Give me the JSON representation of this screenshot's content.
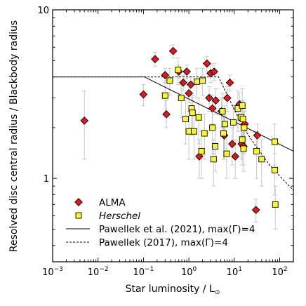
{
  "chart_data": {
    "type": "scatter",
    "xlabel_main": "Star luminosity / L",
    "xlabel_sub": "⊙",
    "ylabel": "Resolved disc central radius / Blackbody radius",
    "x_scale": "log",
    "y_scale": "log",
    "xlim": [
      0.001,
      200
    ],
    "ylim": [
      0.32,
      10
    ],
    "x_ticks": [
      {
        "value": 0.001,
        "base": "10",
        "exp": "−3"
      },
      {
        "value": 0.01,
        "base": "10",
        "exp": "−2"
      },
      {
        "value": 0.1,
        "base": "10",
        "exp": "−1"
      },
      {
        "value": 1,
        "base": "10",
        "exp": "0"
      },
      {
        "value": 10,
        "base": "10",
        "exp": "1"
      },
      {
        "value": 100,
        "base": "10",
        "exp": "2"
      }
    ],
    "y_ticks": [
      {
        "value": 1,
        "label": "1"
      },
      {
        "value": 10,
        "label": "10"
      }
    ],
    "legend_position": "lower-left",
    "series": [
      {
        "name": "ALMA",
        "marker": "diamond",
        "color": "#e8141c",
        "points": [
          {
            "x": 0.005,
            "y": 2.2,
            "lo": 1.3,
            "hi": 3.3
          },
          {
            "x": 0.1,
            "y": 3.15,
            "lo": 2.7,
            "hi": 3.6
          },
          {
            "x": 0.18,
            "y": 5.1,
            "lo": 4.6,
            "hi": 5.6
          },
          {
            "x": 0.3,
            "y": 4.1,
            "lo": 3.7,
            "hi": 4.5
          },
          {
            "x": 0.32,
            "y": 2.4,
            "lo": 2.0,
            "hi": 2.9
          },
          {
            "x": 0.45,
            "y": 5.7,
            "lo": 5.2,
            "hi": 6.2
          },
          {
            "x": 0.6,
            "y": 4.3,
            "lo": 3.9,
            "hi": 4.7
          },
          {
            "x": 0.75,
            "y": 3.7,
            "lo": 3.3,
            "hi": 4.1
          },
          {
            "x": 0.9,
            "y": 4.3,
            "lo": 3.9,
            "hi": 4.7
          },
          {
            "x": 1.0,
            "y": 3.2,
            "lo": 2.8,
            "hi": 3.7
          },
          {
            "x": 1.1,
            "y": 3.6,
            "lo": 3.2,
            "hi": 4.0
          },
          {
            "x": 1.7,
            "y": 1.35,
            "lo": 1.0,
            "hi": 1.7
          },
          {
            "x": 2.5,
            "y": 4.8,
            "lo": 4.3,
            "hi": 5.3
          },
          {
            "x": 2.8,
            "y": 3.0,
            "lo": 2.5,
            "hi": 3.5
          },
          {
            "x": 3.0,
            "y": 4.2,
            "lo": 3.7,
            "hi": 4.7
          },
          {
            "x": 3.3,
            "y": 2.6,
            "lo": 2.1,
            "hi": 3.1
          },
          {
            "x": 3.6,
            "y": 4.3,
            "lo": 3.8,
            "hi": 4.8
          },
          {
            "x": 3.9,
            "y": 2.9,
            "lo": 2.4,
            "hi": 3.4
          },
          {
            "x": 5.2,
            "y": 2.5,
            "lo": 2.0,
            "hi": 3.0
          },
          {
            "x": 6.0,
            "y": 1.8,
            "lo": 1.3,
            "hi": 2.3
          },
          {
            "x": 7.0,
            "y": 3.0,
            "lo": 2.5,
            "hi": 3.5
          },
          {
            "x": 8.0,
            "y": 3.7,
            "lo": 3.3,
            "hi": 4.1
          },
          {
            "x": 9.0,
            "y": 1.6,
            "lo": 1.2,
            "hi": 2.0
          },
          {
            "x": 10.5,
            "y": 1.35,
            "lo": 1.0,
            "hi": 1.7
          },
          {
            "x": 13.0,
            "y": 2.75,
            "lo": 2.3,
            "hi": 3.2
          },
          {
            "x": 14.5,
            "y": 1.6,
            "lo": 1.3,
            "hi": 1.9
          },
          {
            "x": 16.0,
            "y": 1.55,
            "lo": 1.2,
            "hi": 1.9
          },
          {
            "x": 17.0,
            "y": 2.1,
            "lo": 1.7,
            "hi": 2.5
          },
          {
            "x": 32.0,
            "y": 1.8,
            "lo": 1.5,
            "hi": 2.1
          },
          {
            "x": 30.0,
            "y": 0.65,
            "lo": 0.55,
            "hi": 0.75
          }
        ]
      },
      {
        "name": "Herschel",
        "marker": "square",
        "color": "#fafa1e",
        "points": [
          {
            "x": 0.3,
            "y": 3.1,
            "lo": 2.4,
            "hi": 3.8
          },
          {
            "x": 0.38,
            "y": 3.8,
            "lo": 3.1,
            "hi": 4.5
          },
          {
            "x": 0.58,
            "y": 4.4,
            "lo": 3.6,
            "hi": 5.2
          },
          {
            "x": 0.68,
            "y": 3.0,
            "lo": 2.3,
            "hi": 3.7
          },
          {
            "x": 0.85,
            "y": 2.25,
            "lo": 1.6,
            "hi": 2.9
          },
          {
            "x": 1.0,
            "y": 1.9,
            "lo": 1.3,
            "hi": 2.5
          },
          {
            "x": 1.15,
            "y": 2.6,
            "lo": 2.0,
            "hi": 3.2
          },
          {
            "x": 1.2,
            "y": 2.45,
            "lo": 1.8,
            "hi": 3.1
          },
          {
            "x": 1.3,
            "y": 1.9,
            "lo": 1.3,
            "hi": 2.5
          },
          {
            "x": 1.5,
            "y": 3.75,
            "lo": 3.0,
            "hi": 4.5
          },
          {
            "x": 1.65,
            "y": 2.3,
            "lo": 1.6,
            "hi": 3.0
          },
          {
            "x": 1.9,
            "y": 1.45,
            "lo": 1.0,
            "hi": 1.9
          },
          {
            "x": 2.0,
            "y": 3.8,
            "lo": 3.1,
            "hi": 4.5
          },
          {
            "x": 2.2,
            "y": 1.85,
            "lo": 1.3,
            "hi": 2.4
          },
          {
            "x": 3.3,
            "y": 2.0,
            "lo": 1.4,
            "hi": 2.6
          },
          {
            "x": 3.5,
            "y": 1.3,
            "lo": 0.9,
            "hi": 1.7
          },
          {
            "x": 3.8,
            "y": 1.55,
            "lo": 1.1,
            "hi": 2.0
          },
          {
            "x": 5.5,
            "y": 2.5,
            "lo": 1.8,
            "hi": 3.2
          },
          {
            "x": 5.8,
            "y": 1.85,
            "lo": 1.3,
            "hi": 2.4
          },
          {
            "x": 6.2,
            "y": 2.1,
            "lo": 1.5,
            "hi": 2.7
          },
          {
            "x": 6.8,
            "y": 1.4,
            "lo": 1.0,
            "hi": 1.8
          },
          {
            "x": 9.5,
            "y": 2.15,
            "lo": 1.6,
            "hi": 2.7
          },
          {
            "x": 12.0,
            "y": 2.6,
            "lo": 1.9,
            "hi": 3.3
          },
          {
            "x": 14.0,
            "y": 2.3,
            "lo": 1.7,
            "hi": 2.9
          },
          {
            "x": 15.0,
            "y": 2.7,
            "lo": 2.0,
            "hi": 3.4
          },
          {
            "x": 15.0,
            "y": 1.7,
            "lo": 1.2,
            "hi": 2.2
          },
          {
            "x": 15.5,
            "y": 2.25,
            "lo": 1.6,
            "hi": 2.9
          },
          {
            "x": 16.5,
            "y": 2.0,
            "lo": 1.4,
            "hi": 2.6
          },
          {
            "x": 16.0,
            "y": 1.5,
            "lo": 1.1,
            "hi": 1.9
          },
          {
            "x": 31.0,
            "y": 1.45,
            "lo": 1.0,
            "hi": 1.9
          },
          {
            "x": 40.0,
            "y": 1.3,
            "lo": 0.9,
            "hi": 1.7
          },
          {
            "x": 78.0,
            "y": 1.65,
            "lo": 1.2,
            "hi": 2.1
          },
          {
            "x": 78.0,
            "y": 1.12,
            "lo": 0.8,
            "hi": 1.4
          },
          {
            "x": 80.0,
            "y": 0.7,
            "lo": 0.5,
            "hi": 0.9
          }
        ]
      },
      {
        "name": "Pawellek et al. (2021), max(Γ)=4",
        "style": "solid",
        "points": [
          {
            "x": 0.001,
            "y": 4.0
          },
          {
            "x": 0.105,
            "y": 4.0
          },
          {
            "x": 200,
            "y": 1.45
          }
        ]
      },
      {
        "name": "Pawellek (2017), max(Γ)=4",
        "style": "dashed",
        "points": [
          {
            "x": 0.001,
            "y": 4.0
          },
          {
            "x": 4.5,
            "y": 4.0
          },
          {
            "x": 8.0,
            "y": 2.9
          },
          {
            "x": 15.0,
            "y": 2.05
          },
          {
            "x": 30.0,
            "y": 1.55
          },
          {
            "x": 60.0,
            "y": 1.2
          },
          {
            "x": 120.0,
            "y": 0.98
          },
          {
            "x": 200,
            "y": 0.85
          }
        ]
      }
    ]
  }
}
